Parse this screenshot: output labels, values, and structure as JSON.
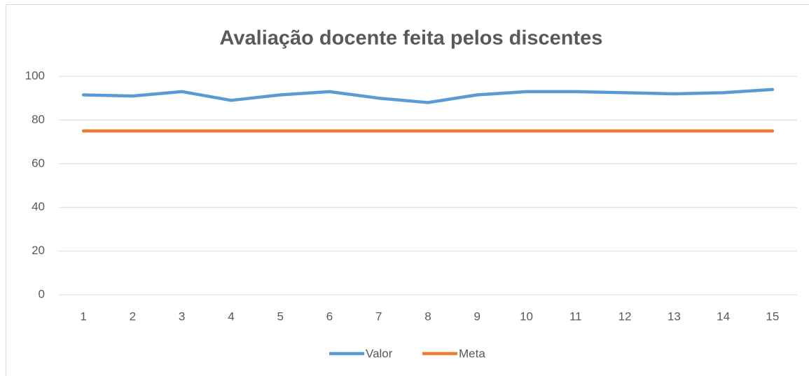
{
  "chart_data": {
    "type": "line",
    "title": "Avaliação docente feita pelos discentes",
    "categories": [
      1,
      2,
      3,
      4,
      5,
      6,
      7,
      8,
      9,
      10,
      11,
      12,
      13,
      14,
      15
    ],
    "series": [
      {
        "name": "Valor",
        "color": "#5b9bd5",
        "values": [
          91.5,
          91,
          93,
          89,
          91.5,
          93,
          90,
          88,
          91.5,
          93,
          93,
          92.5,
          92,
          92.5,
          94
        ]
      },
      {
        "name": "Meta",
        "color": "#ed7d31",
        "values": [
          75,
          75,
          75,
          75,
          75,
          75,
          75,
          75,
          75,
          75,
          75,
          75,
          75,
          75,
          75
        ]
      }
    ],
    "ylim": [
      0,
      100
    ],
    "yticks": [
      0,
      20,
      40,
      60,
      80,
      100
    ],
    "grid": true,
    "legend": "bottom"
  }
}
